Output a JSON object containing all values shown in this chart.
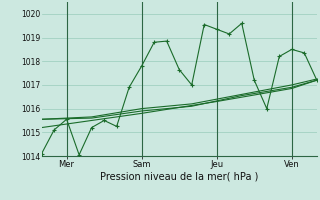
{
  "xlabel": "Pression niveau de la mer( hPa )",
  "bg_color": "#cce8e0",
  "grid_color": "#99ccbb",
  "line_color": "#1a6b2a",
  "ylim": [
    1014,
    1020.5
  ],
  "yticks": [
    1014,
    1015,
    1016,
    1017,
    1018,
    1019,
    1020
  ],
  "xtick_labels": [
    "Mer",
    "Sam",
    "Jeu",
    "Ven"
  ],
  "xtick_positions": [
    1,
    4,
    7,
    10
  ],
  "vline_positions": [
    1,
    4,
    7,
    10
  ],
  "series1_x": [
    0,
    0.5,
    1,
    1.5,
    2,
    2.5,
    3,
    3.5,
    4,
    4.5,
    5,
    5.5,
    6,
    6.5,
    7,
    7.5,
    8,
    8.5,
    9,
    9.5,
    10,
    10.5,
    11
  ],
  "series1_y": [
    1014.1,
    1015.1,
    1015.55,
    1014.05,
    1015.2,
    1015.5,
    1015.25,
    1016.9,
    1017.8,
    1018.8,
    1018.85,
    1017.65,
    1017.0,
    1019.55,
    1019.35,
    1019.15,
    1019.6,
    1017.2,
    1016.0,
    1018.2,
    1018.5,
    1018.35,
    1017.2
  ],
  "series2_x": [
    0,
    2,
    4,
    6,
    8,
    10,
    11
  ],
  "series2_y": [
    1015.55,
    1015.6,
    1015.9,
    1016.1,
    1016.55,
    1016.9,
    1017.2
  ],
  "series3_x": [
    0,
    2,
    4,
    6,
    8,
    10,
    11
  ],
  "series3_y": [
    1015.55,
    1015.65,
    1016.0,
    1016.2,
    1016.6,
    1017.0,
    1017.25
  ],
  "series4_x": [
    0,
    4,
    7,
    10,
    11
  ],
  "series4_y": [
    1015.2,
    1015.8,
    1016.3,
    1016.85,
    1017.2
  ],
  "figsize": [
    3.2,
    2.0
  ],
  "dpi": 100
}
